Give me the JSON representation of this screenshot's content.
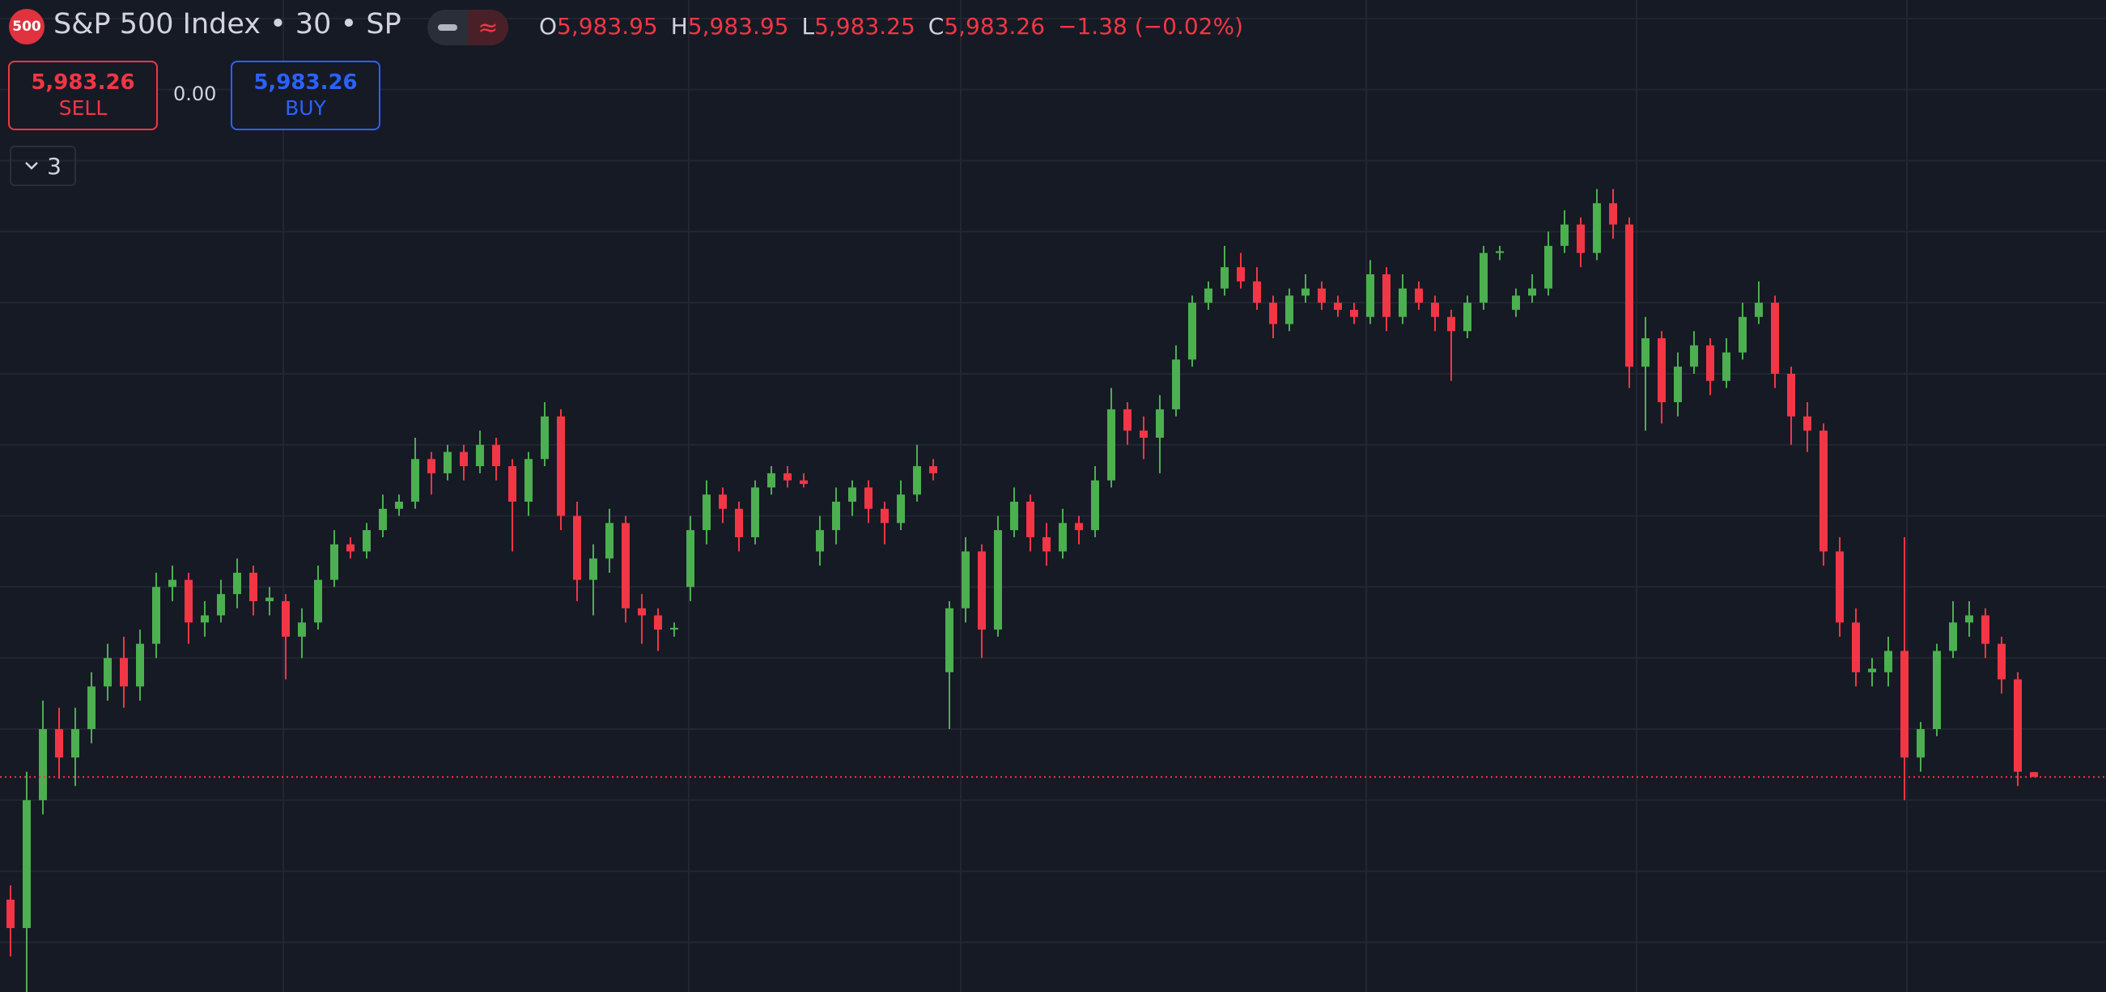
{
  "header": {
    "icon": "500",
    "title": "S&P 500 Index • 30 • SP",
    "toggle": "≈",
    "ohlc": [
      {
        "label": "O",
        "value": "5,983.95"
      },
      {
        "label": "H",
        "value": "5,983.95"
      },
      {
        "label": "L",
        "value": "5,983.25"
      },
      {
        "label": "C",
        "value": "5,983.26"
      }
    ],
    "change": "−1.38 (−0.02%)"
  },
  "trade": {
    "sell_price": "5,983.26",
    "sell_label": "SELL",
    "spread": "0.00",
    "buy_price": "5,983.26",
    "buy_label": "BUY"
  },
  "indicators_toggle": "3",
  "chart_data": {
    "type": "candlestick",
    "up_color": "#4caf50",
    "down_color": "#f23645",
    "ylim": [
      5953,
      6092.6
    ],
    "ygrid": [
      5960,
      5970,
      5980,
      5990,
      6000,
      6010,
      6020,
      6030,
      6040,
      6050,
      6060,
      6070,
      6080,
      6090
    ],
    "grid": true,
    "last_price": 5983.26,
    "candles": [
      [
        5966,
        5968,
        5958,
        5962
      ],
      [
        5962,
        5984,
        5953,
        5980
      ],
      [
        5980,
        5994,
        5978,
        5990
      ],
      [
        5990,
        5993,
        5983,
        5986
      ],
      [
        5986,
        5993,
        5982,
        5990
      ],
      [
        5990,
        5998,
        5988,
        5996
      ],
      [
        5996,
        6002,
        5994,
        6000
      ],
      [
        6000,
        6003,
        5993,
        5996
      ],
      [
        5996,
        6004,
        5994,
        6002
      ],
      [
        6002,
        6012,
        6000,
        6010
      ],
      [
        6010,
        6013,
        6008,
        6011
      ],
      [
        6011,
        6012,
        6002,
        6005
      ],
      [
        6005,
        6008,
        6003,
        6006
      ],
      [
        6006,
        6011,
        6005,
        6009
      ],
      [
        6009,
        6014,
        6007,
        6012
      ],
      [
        6012,
        6013,
        6006,
        6008
      ],
      [
        6008,
        6010,
        6006,
        6008.5
      ],
      [
        6008,
        6009,
        5997,
        6003
      ],
      [
        6003,
        6007,
        6000,
        6005
      ],
      [
        6005,
        6013,
        6004,
        6011
      ],
      [
        6011,
        6018,
        6010,
        6016
      ],
      [
        6016,
        6017,
        6014,
        6015
      ],
      [
        6015,
        6019,
        6014,
        6018
      ],
      [
        6018,
        6023,
        6017,
        6021
      ],
      [
        6021,
        6023,
        6020,
        6022
      ],
      [
        6022,
        6031,
        6021,
        6028
      ],
      [
        6028,
        6029,
        6023,
        6026
      ],
      [
        6026,
        6030,
        6025,
        6029
      ],
      [
        6029,
        6030,
        6025,
        6027
      ],
      [
        6027,
        6032,
        6026,
        6030
      ],
      [
        6030,
        6031,
        6025,
        6027
      ],
      [
        6027,
        6028,
        6015,
        6022
      ],
      [
        6022,
        6029,
        6020,
        6028
      ],
      [
        6028,
        6036,
        6027,
        6034
      ],
      [
        6034,
        6035,
        6018,
        6020
      ],
      [
        6020,
        6022,
        6008,
        6011
      ],
      [
        6011,
        6016,
        6006,
        6014
      ],
      [
        6014,
        6021,
        6012,
        6019
      ],
      [
        6019,
        6020,
        6005,
        6007
      ],
      [
        6007,
        6009,
        6002,
        6006
      ],
      [
        6006,
        6007,
        6001,
        6004
      ],
      [
        6004,
        6005,
        6003,
        6004.25
      ],
      [
        6010,
        6020,
        6008,
        6018
      ],
      [
        6018,
        6025,
        6016,
        6023
      ],
      [
        6023,
        6024,
        6019,
        6021
      ],
      [
        6021,
        6022,
        6015,
        6017
      ],
      [
        6017,
        6025,
        6016,
        6024
      ],
      [
        6024,
        6027,
        6023,
        6026
      ],
      [
        6026,
        6027,
        6024,
        6025
      ],
      [
        6025,
        6026,
        6024,
        6024.5
      ],
      [
        6015,
        6020,
        6013,
        6018
      ],
      [
        6018,
        6024,
        6016,
        6022
      ],
      [
        6022,
        6025,
        6020,
        6024
      ],
      [
        6024,
        6025,
        6019,
        6021
      ],
      [
        6021,
        6022,
        6016,
        6019
      ],
      [
        6019,
        6025,
        6018,
        6023
      ],
      [
        6023,
        6030,
        6022,
        6027
      ],
      [
        6027,
        6028,
        6025,
        6026
      ],
      [
        5998,
        6008,
        5990,
        6007
      ],
      [
        6007,
        6017,
        6005,
        6015
      ],
      [
        6015,
        6016,
        6000,
        6004
      ],
      [
        6004,
        6020,
        6003,
        6018
      ],
      [
        6018,
        6024,
        6017,
        6022
      ],
      [
        6022,
        6023,
        6015,
        6017
      ],
      [
        6017,
        6019,
        6013,
        6015
      ],
      [
        6015,
        6021,
        6014,
        6019
      ],
      [
        6019,
        6020,
        6016,
        6018
      ],
      [
        6018,
        6027,
        6017,
        6025
      ],
      [
        6025,
        6038,
        6024,
        6035
      ],
      [
        6035,
        6036,
        6030,
        6032
      ],
      [
        6032,
        6034,
        6028,
        6031
      ],
      [
        6031,
        6037,
        6026,
        6035
      ],
      [
        6035,
        6044,
        6034,
        6042
      ],
      [
        6042,
        6051,
        6041,
        6050
      ],
      [
        6050,
        6053,
        6049,
        6052
      ],
      [
        6052,
        6058,
        6051,
        6055
      ],
      [
        6055,
        6057,
        6052,
        6053
      ],
      [
        6053,
        6055,
        6049,
        6050
      ],
      [
        6050,
        6051,
        6045,
        6047
      ],
      [
        6047,
        6052,
        6046,
        6051
      ],
      [
        6051,
        6054,
        6050,
        6052
      ],
      [
        6052,
        6053,
        6049,
        6050
      ],
      [
        6050,
        6051,
        6048,
        6049
      ],
      [
        6049,
        6050,
        6047,
        6048
      ],
      [
        6048,
        6056,
        6047,
        6054
      ],
      [
        6054,
        6055,
        6046,
        6048
      ],
      [
        6048,
        6054,
        6047,
        6052
      ],
      [
        6052,
        6053,
        6049,
        6050
      ],
      [
        6050,
        6051,
        6046,
        6048
      ],
      [
        6048,
        6049,
        6039,
        6046
      ],
      [
        6046,
        6051,
        6045,
        6050
      ],
      [
        6050,
        6058,
        6049,
        6057
      ],
      [
        6057,
        6058,
        6056,
        6057.25
      ],
      [
        6049,
        6052,
        6048,
        6051
      ],
      [
        6051,
        6054,
        6050,
        6052
      ],
      [
        6052,
        6060,
        6051,
        6058
      ],
      [
        6058,
        6063,
        6057,
        6061
      ],
      [
        6061,
        6062,
        6055,
        6057
      ],
      [
        6057,
        6066,
        6056,
        6064
      ],
      [
        6064,
        6066,
        6059,
        6061
      ],
      [
        6061,
        6062,
        6038,
        6041
      ],
      [
        6041,
        6048,
        6032,
        6045
      ],
      [
        6045,
        6046,
        6033,
        6036
      ],
      [
        6036,
        6043,
        6034,
        6041
      ],
      [
        6041,
        6046,
        6040,
        6044
      ],
      [
        6044,
        6045,
        6037,
        6039
      ],
      [
        6039,
        6045,
        6038,
        6043
      ],
      [
        6043,
        6050,
        6042,
        6048
      ],
      [
        6048,
        6053,
        6047,
        6050
      ],
      [
        6050,
        6051,
        6038,
        6040
      ],
      [
        6040,
        6041,
        6030,
        6034
      ],
      [
        6034,
        6036,
        6029,
        6032
      ],
      [
        6032,
        6033,
        6013,
        6015
      ],
      [
        6015,
        6017,
        6003,
        6005
      ],
      [
        6005,
        6007,
        5996,
        5998
      ],
      [
        5998,
        6000,
        5996,
        5998.5
      ],
      [
        5998,
        6003,
        5996,
        6001
      ],
      [
        6001,
        6017,
        5980,
        5986
      ],
      [
        5986,
        5991,
        5984,
        5990
      ],
      [
        5990,
        6002,
        5989,
        6001
      ],
      [
        6001,
        6008,
        6000,
        6005
      ],
      [
        6005,
        6008,
        6003,
        6006
      ],
      [
        6006,
        6007,
        6000,
        6002
      ],
      [
        6002,
        6003,
        5995,
        5997
      ],
      [
        5997,
        5998,
        5982,
        5984
      ],
      [
        5983.95,
        5983.95,
        5983.25,
        5983.26
      ]
    ]
  }
}
